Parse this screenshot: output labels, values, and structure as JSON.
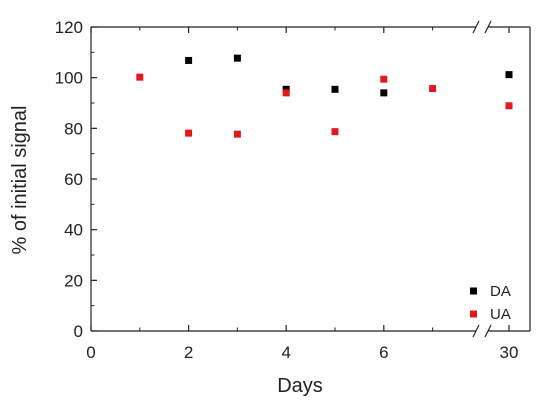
{
  "chart_data": {
    "type": "scatter",
    "title": "",
    "xlabel": "Days",
    "ylabel": "% of initial signal",
    "x_ticks": [
      {
        "x": 0,
        "label": "0"
      },
      {
        "x": 2,
        "label": "2"
      },
      {
        "x": 4,
        "label": "4"
      },
      {
        "x": 6,
        "label": "6"
      },
      {
        "x": 30,
        "label": "30"
      }
    ],
    "y_ticks": [
      {
        "y": 0,
        "label": "0"
      },
      {
        "y": 20,
        "label": "20"
      },
      {
        "y": 40,
        "label": "40"
      },
      {
        "y": 60,
        "label": "60"
      },
      {
        "y": 80,
        "label": "80"
      },
      {
        "y": 100,
        "label": "100"
      },
      {
        "y": 120,
        "label": "120"
      }
    ],
    "ylim": [
      0,
      120
    ],
    "x_axis_break": {
      "after": 7,
      "before": 30
    },
    "grid": false,
    "legend_position": "bottom-right",
    "series": [
      {
        "name": "DA",
        "color": "#000000",
        "points": [
          {
            "x": 2,
            "y": 106.8
          },
          {
            "x": 3,
            "y": 107.7
          },
          {
            "x": 4,
            "y": 95.4
          },
          {
            "x": 5,
            "y": 95.4
          },
          {
            "x": 6,
            "y": 94.0
          },
          {
            "x": 30,
            "y": 101.2
          }
        ]
      },
      {
        "name": "UA",
        "color": "#e31a1c",
        "points": [
          {
            "x": 1,
            "y": 100.2
          },
          {
            "x": 2,
            "y": 78.1
          },
          {
            "x": 3,
            "y": 77.7
          },
          {
            "x": 4,
            "y": 94.0
          },
          {
            "x": 5,
            "y": 78.7
          },
          {
            "x": 6,
            "y": 99.4
          },
          {
            "x": 7,
            "y": 95.7
          },
          {
            "x": 30,
            "y": 88.9
          }
        ]
      }
    ]
  }
}
